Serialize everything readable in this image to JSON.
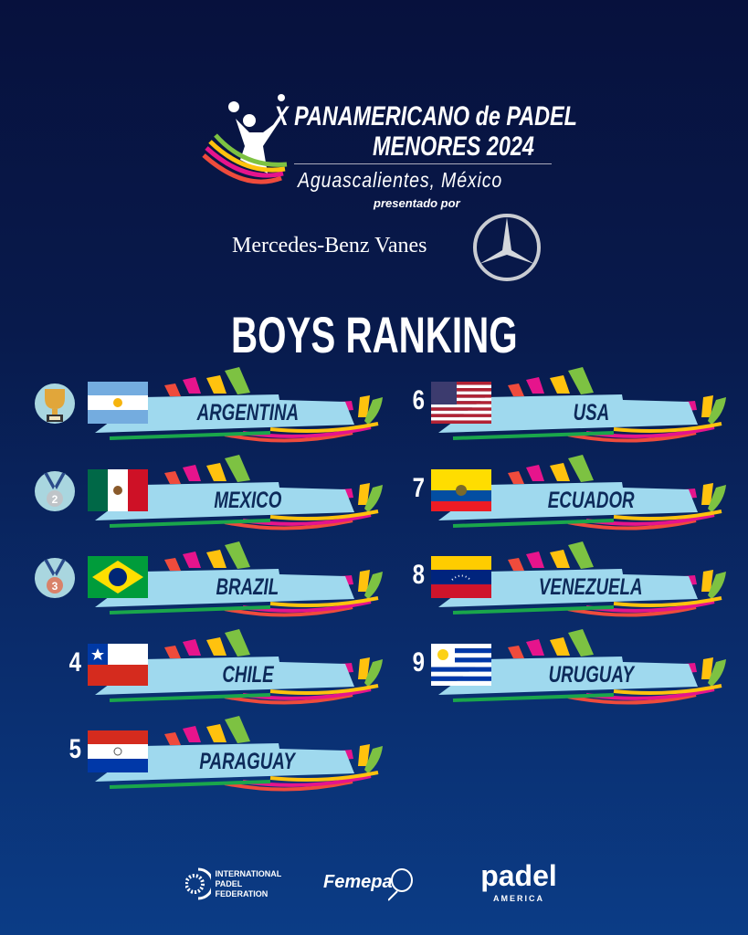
{
  "header": {
    "line1": "X PANAMERICANO de PADEL",
    "line2": "MENORES 2024",
    "line3": "Aguascalientes, México",
    "presented": "presentado por",
    "sponsor": "Mercedes-Benz Vanes"
  },
  "title": "BOYS RANKING",
  "colors": {
    "banner": "#9fd9ee",
    "banner_text": "#0d2a5a",
    "ribbons": [
      "#ef4b3c",
      "#e6148c",
      "#ffc20e",
      "#7dc242",
      "#1aa64b"
    ]
  },
  "ranking": [
    {
      "rank": "1",
      "badge": "trophy-icon",
      "country": "ARGENTINA",
      "flag": "ar"
    },
    {
      "rank": "2",
      "badge": "silver-medal-icon",
      "country": "MEXICO",
      "flag": "mx"
    },
    {
      "rank": "3",
      "badge": "bronze-medal-icon",
      "country": "BRAZIL",
      "flag": "br"
    },
    {
      "rank": "4",
      "country": "CHILE",
      "flag": "cl"
    },
    {
      "rank": "5",
      "country": "PARAGUAY",
      "flag": "py"
    },
    {
      "rank": "6",
      "country": "USA",
      "flag": "us"
    },
    {
      "rank": "7",
      "country": "ECUADOR",
      "flag": "ec"
    },
    {
      "rank": "8",
      "country": "VENEZUELA",
      "flag": "ve"
    },
    {
      "rank": "9",
      "country": "URUGUAY",
      "flag": "uy"
    }
  ],
  "footer": {
    "ipf": [
      "INTERNATIONAL",
      "PADEL",
      "FEDERATION"
    ],
    "femepa": "Femepa",
    "padel": "padel",
    "america": "AMERICA"
  }
}
